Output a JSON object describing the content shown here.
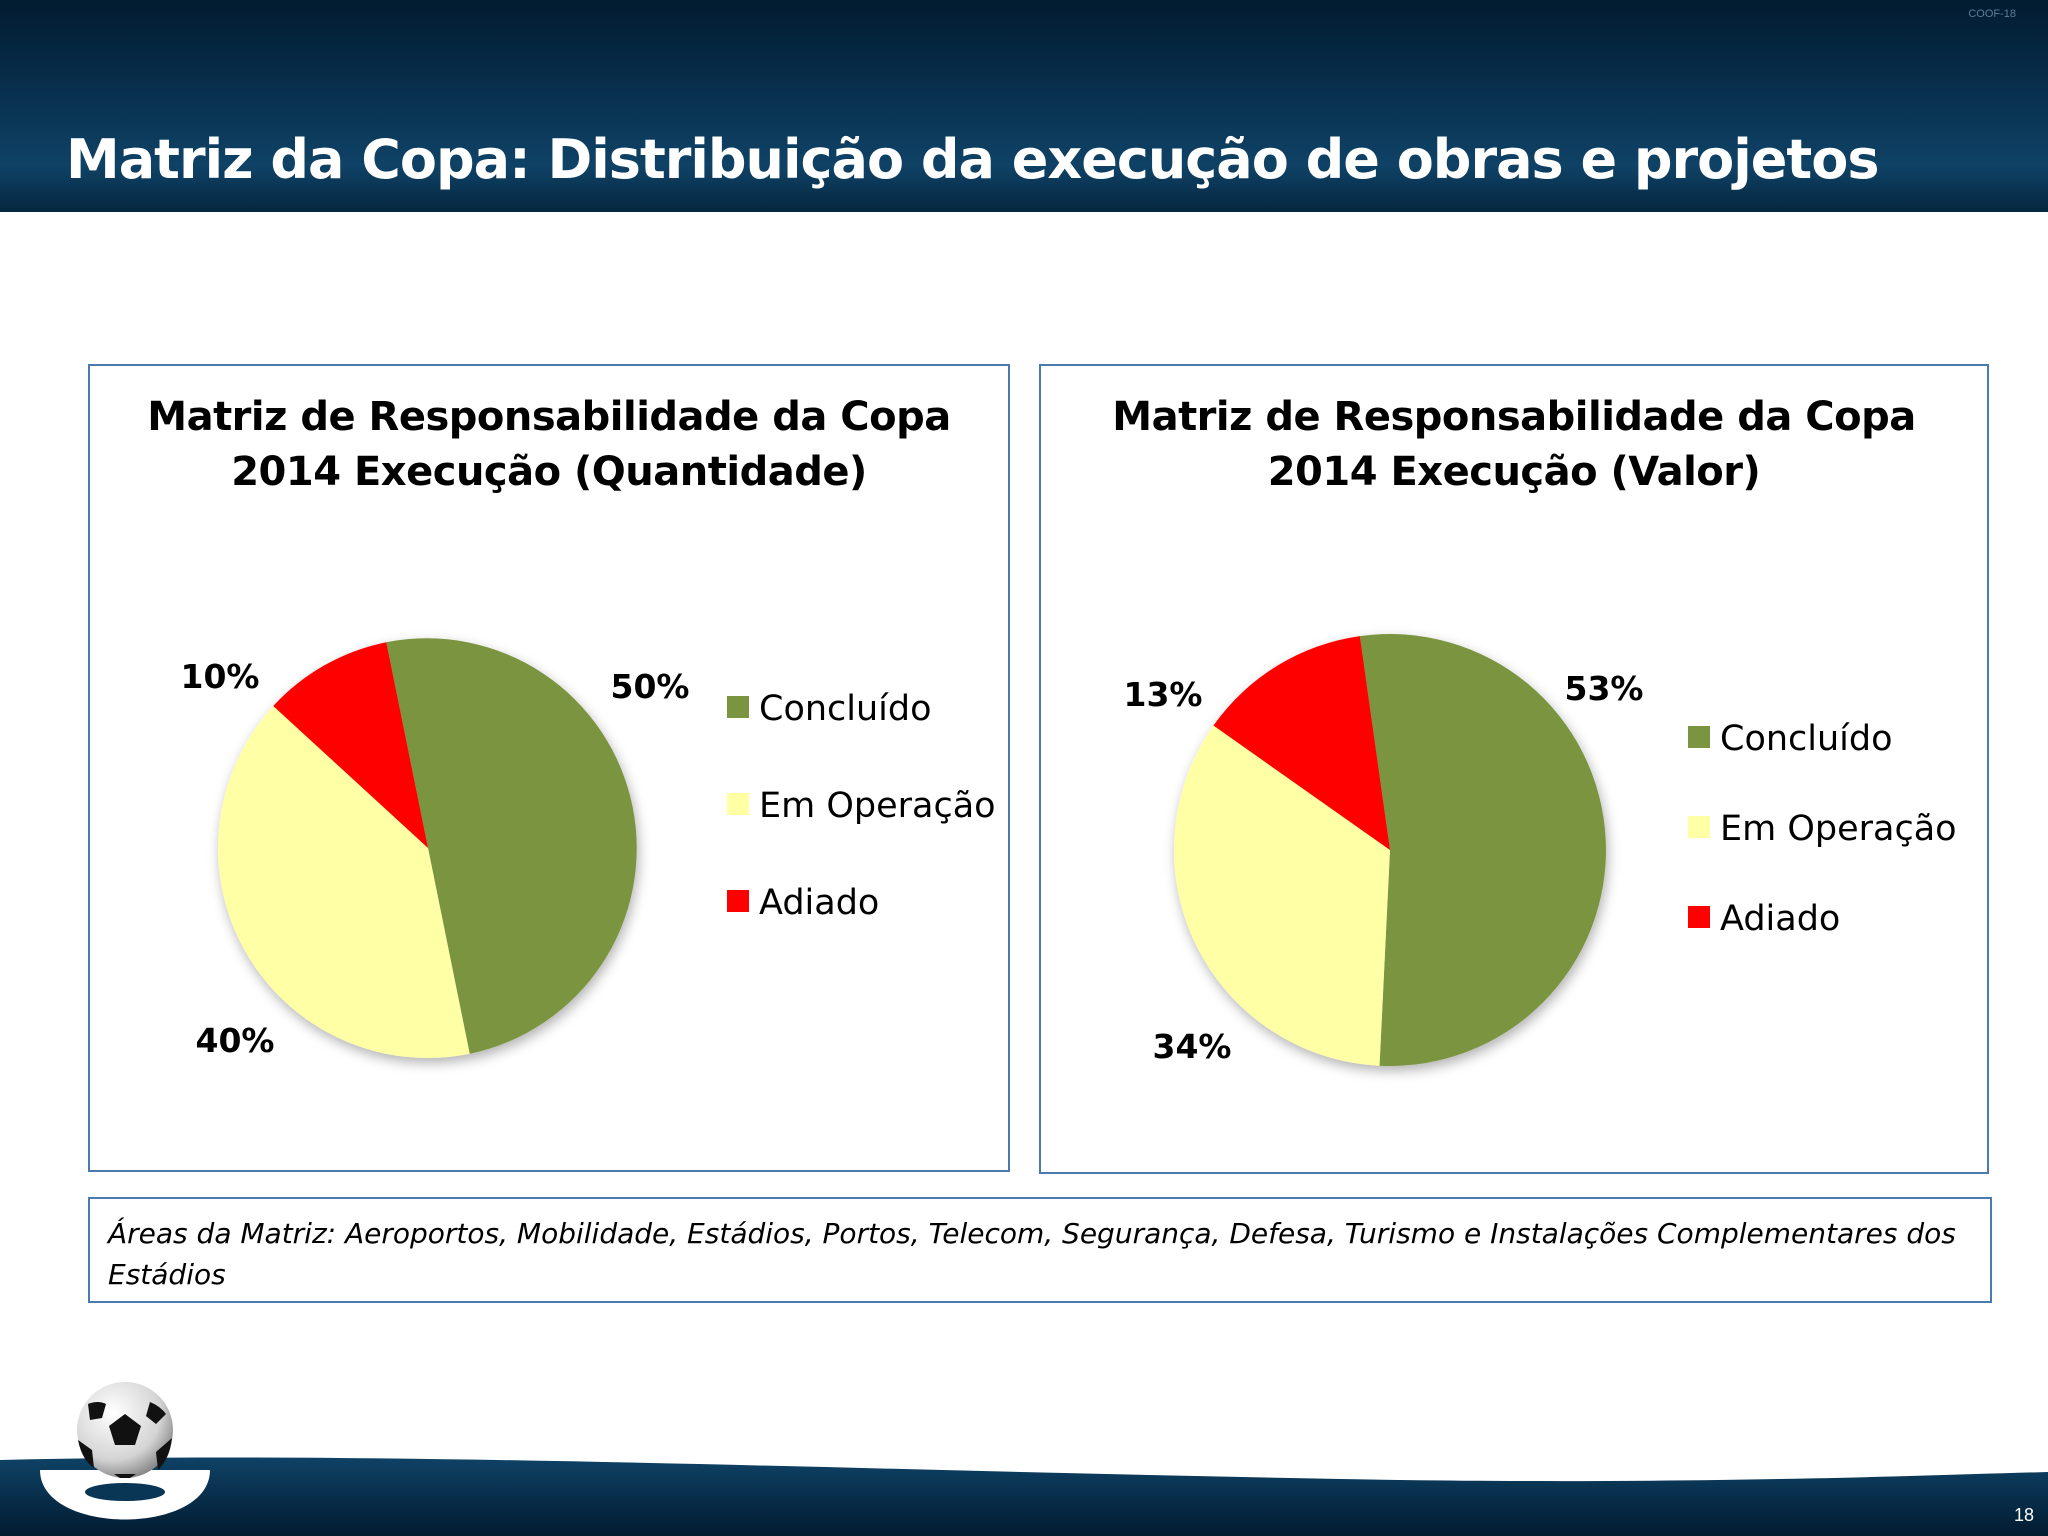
{
  "slide": {
    "title": "Matriz da Copa: Distribuição da execução de obras e projetos",
    "code": "COOF-18",
    "page_number": "18",
    "note": "Áreas da Matriz: Aeroportos, Mobilidade, Estádios, Portos, Telecom, Segurança, Defesa, Turismo  e Instalações  Complementares dos Estádios",
    "logo_icon": "soccer-ball-icon"
  },
  "colors": {
    "concluido": "#7a9440",
    "em_operacao": "#ffffa6",
    "adiado": "#ff0000",
    "header": "#0a3656",
    "border": "#4a7ab0"
  },
  "chart_data": [
    {
      "type": "pie",
      "title_line1": "Matriz de Responsabilidade da Copa",
      "title_line2": "2014 Execução (Quantidade)",
      "categories": [
        "Concluído",
        "Em Operação",
        "Adiado"
      ],
      "values": [
        50,
        40,
        10
      ],
      "labels": [
        "50%",
        "40%",
        "10%"
      ],
      "legend_position": "right"
    },
    {
      "type": "pie",
      "title_line1": "Matriz de Responsabilidade da Copa",
      "title_line2": "2014 Execução (Valor)",
      "categories": [
        "Concluído",
        "Em Operação",
        "Adiado"
      ],
      "values": [
        53,
        34,
        13
      ],
      "labels": [
        "53%",
        "34%",
        "13%"
      ],
      "legend_position": "right"
    }
  ]
}
